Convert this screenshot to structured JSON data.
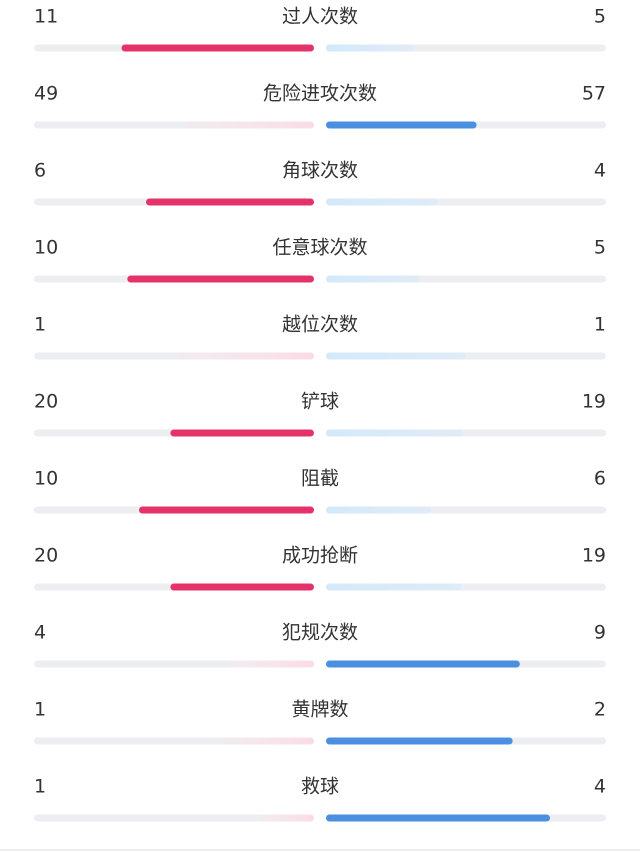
{
  "stats": [
    {
      "label": "过人次数",
      "home": 11,
      "away": 5
    },
    {
      "label": "危险进攻次数",
      "home": 49,
      "away": 57
    },
    {
      "label": "角球次数",
      "home": 6,
      "away": 4
    },
    {
      "label": "任意球次数",
      "home": 10,
      "away": 5
    },
    {
      "label": "越位次数",
      "home": 1,
      "away": 1
    },
    {
      "label": "铲球",
      "home": 20,
      "away": 19
    },
    {
      "label": "阻截",
      "home": 10,
      "away": 6
    },
    {
      "label": "成功抢断",
      "home": 20,
      "away": 19
    },
    {
      "label": "犯规次数",
      "home": 4,
      "away": 9
    },
    {
      "label": "黄牌数",
      "home": 1,
      "away": 2
    },
    {
      "label": "救球",
      "home": 1,
      "away": 4
    }
  ]
}
